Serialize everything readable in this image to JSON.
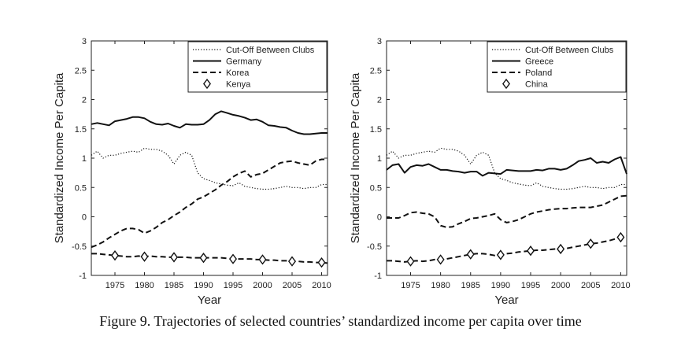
{
  "caption": "Figure 9.  Trajectories of selected countries’ standardized income per capita over time",
  "chart_data": [
    {
      "type": "line",
      "xlabel": "Year",
      "ylabel": "Standardized Income Per Capita",
      "xlim": [
        1971,
        2011
      ],
      "ylim": [
        -1,
        3
      ],
      "xticks": [
        1975,
        1980,
        1985,
        1990,
        1995,
        2000,
        2005,
        2010
      ],
      "yticks": [
        -1,
        -0.5,
        0,
        0.5,
        1,
        1.5,
        2,
        2.5,
        3
      ],
      "legend_position": "top-right",
      "x": [
        1971,
        1972,
        1973,
        1974,
        1975,
        1976,
        1977,
        1978,
        1979,
        1980,
        1981,
        1982,
        1983,
        1984,
        1985,
        1986,
        1987,
        1988,
        1989,
        1990,
        1991,
        1992,
        1993,
        1994,
        1995,
        1996,
        1997,
        1998,
        1999,
        2000,
        2001,
        2002,
        2003,
        2004,
        2005,
        2006,
        2007,
        2008,
        2009,
        2010,
        2011
      ],
      "series": [
        {
          "name": "Cut-Off Between Clubs",
          "style": "dotted",
          "marker": "none",
          "values": [
            1.05,
            1.12,
            1.0,
            1.05,
            1.05,
            1.08,
            1.1,
            1.12,
            1.1,
            1.17,
            1.15,
            1.15,
            1.12,
            1.05,
            0.9,
            1.05,
            1.1,
            1.05,
            0.75,
            0.65,
            0.62,
            0.58,
            0.56,
            0.54,
            0.53,
            0.58,
            0.52,
            0.5,
            0.48,
            0.47,
            0.47,
            0.48,
            0.5,
            0.52,
            0.5,
            0.5,
            0.48,
            0.5,
            0.5,
            0.55,
            0.55
          ]
        },
        {
          "name": "Germany",
          "style": "solid",
          "marker": "none",
          "values": [
            1.58,
            1.6,
            1.58,
            1.56,
            1.63,
            1.65,
            1.67,
            1.7,
            1.7,
            1.68,
            1.62,
            1.58,
            1.57,
            1.59,
            1.55,
            1.52,
            1.58,
            1.57,
            1.57,
            1.58,
            1.65,
            1.75,
            1.8,
            1.77,
            1.74,
            1.72,
            1.69,
            1.65,
            1.66,
            1.62,
            1.56,
            1.55,
            1.53,
            1.52,
            1.47,
            1.43,
            1.41,
            1.41,
            1.42,
            1.43,
            1.43
          ]
        },
        {
          "name": "Korea",
          "style": "dashed",
          "marker": "none",
          "values": [
            -0.52,
            -0.48,
            -0.43,
            -0.36,
            -0.3,
            -0.24,
            -0.2,
            -0.2,
            -0.22,
            -0.28,
            -0.24,
            -0.18,
            -0.1,
            -0.05,
            0.02,
            0.08,
            0.16,
            0.22,
            0.3,
            0.34,
            0.4,
            0.46,
            0.54,
            0.6,
            0.68,
            0.74,
            0.78,
            0.68,
            0.72,
            0.74,
            0.8,
            0.86,
            0.92,
            0.94,
            0.95,
            0.92,
            0.9,
            0.88,
            0.95,
            0.98,
            0.98
          ]
        },
        {
          "name": "Kenya",
          "style": "dashed",
          "marker": "diamond",
          "marker_years": [
            1975,
            1980,
            1985,
            1990,
            1995,
            2000,
            2005,
            2010
          ],
          "values": [
            -0.63,
            -0.63,
            -0.64,
            -0.65,
            -0.66,
            -0.67,
            -0.68,
            -0.68,
            -0.67,
            -0.68,
            -0.67,
            -0.68,
            -0.68,
            -0.69,
            -0.69,
            -0.69,
            -0.69,
            -0.7,
            -0.7,
            -0.7,
            -0.7,
            -0.7,
            -0.7,
            -0.71,
            -0.72,
            -0.72,
            -0.72,
            -0.72,
            -0.73,
            -0.73,
            -0.74,
            -0.74,
            -0.75,
            -0.75,
            -0.76,
            -0.76,
            -0.77,
            -0.77,
            -0.78,
            -0.78,
            -0.79
          ]
        }
      ]
    },
    {
      "type": "line",
      "xlabel": "Year",
      "ylabel": "Standardized Income Per Capita",
      "xlim": [
        1971,
        2011
      ],
      "ylim": [
        -1,
        3
      ],
      "xticks": [
        1975,
        1980,
        1985,
        1990,
        1995,
        2000,
        2005,
        2010
      ],
      "yticks": [
        -1,
        -0.5,
        0,
        0.5,
        1,
        1.5,
        2,
        2.5,
        3
      ],
      "legend_position": "top-right",
      "x": [
        1971,
        1972,
        1973,
        1974,
        1975,
        1976,
        1977,
        1978,
        1979,
        1980,
        1981,
        1982,
        1983,
        1984,
        1985,
        1986,
        1987,
        1988,
        1989,
        1990,
        1991,
        1992,
        1993,
        1994,
        1995,
        1996,
        1997,
        1998,
        1999,
        2000,
        2001,
        2002,
        2003,
        2004,
        2005,
        2006,
        2007,
        2008,
        2009,
        2010,
        2011
      ],
      "series": [
        {
          "name": "Cut-Off Between Clubs",
          "style": "dotted",
          "marker": "none",
          "values": [
            1.05,
            1.12,
            1.0,
            1.05,
            1.05,
            1.08,
            1.1,
            1.12,
            1.1,
            1.17,
            1.15,
            1.15,
            1.12,
            1.05,
            0.9,
            1.05,
            1.1,
            1.05,
            0.75,
            0.65,
            0.62,
            0.58,
            0.56,
            0.54,
            0.53,
            0.58,
            0.52,
            0.5,
            0.48,
            0.47,
            0.47,
            0.48,
            0.5,
            0.52,
            0.5,
            0.5,
            0.48,
            0.5,
            0.5,
            0.55,
            0.55
          ]
        },
        {
          "name": "Greece",
          "style": "solid",
          "marker": "none",
          "values": [
            0.8,
            0.88,
            0.9,
            0.75,
            0.85,
            0.88,
            0.87,
            0.9,
            0.85,
            0.8,
            0.8,
            0.78,
            0.77,
            0.75,
            0.77,
            0.77,
            0.7,
            0.75,
            0.74,
            0.73,
            0.8,
            0.79,
            0.78,
            0.78,
            0.78,
            0.8,
            0.79,
            0.82,
            0.82,
            0.8,
            0.82,
            0.88,
            0.95,
            0.97,
            1.0,
            0.92,
            0.94,
            0.92,
            0.98,
            1.02,
            0.73
          ]
        },
        {
          "name": "Poland",
          "style": "dashed",
          "marker": "none",
          "values": [
            -0.02,
            -0.02,
            -0.02,
            0.02,
            0.07,
            0.08,
            0.06,
            0.05,
            0.0,
            -0.15,
            -0.18,
            -0.17,
            -0.12,
            -0.08,
            -0.03,
            -0.02,
            0.0,
            0.02,
            0.05,
            -0.05,
            -0.1,
            -0.08,
            -0.05,
            0.0,
            0.05,
            0.08,
            0.1,
            0.12,
            0.13,
            0.14,
            0.14,
            0.15,
            0.16,
            0.16,
            0.16,
            0.18,
            0.2,
            0.25,
            0.3,
            0.35,
            0.36
          ]
        },
        {
          "name": "China",
          "style": "dashed",
          "marker": "diamond",
          "marker_years": [
            1975,
            1980,
            1985,
            1990,
            1995,
            2000,
            2005,
            2010
          ],
          "values": [
            -0.75,
            -0.75,
            -0.76,
            -0.77,
            -0.76,
            -0.75,
            -0.76,
            -0.75,
            -0.73,
            -0.73,
            -0.72,
            -0.7,
            -0.68,
            -0.66,
            -0.64,
            -0.63,
            -0.63,
            -0.64,
            -0.66,
            -0.65,
            -0.63,
            -0.62,
            -0.6,
            -0.59,
            -0.58,
            -0.57,
            -0.57,
            -0.56,
            -0.55,
            -0.55,
            -0.54,
            -0.52,
            -0.5,
            -0.48,
            -0.46,
            -0.45,
            -0.43,
            -0.41,
            -0.38,
            -0.35,
            -0.33
          ]
        }
      ]
    }
  ]
}
